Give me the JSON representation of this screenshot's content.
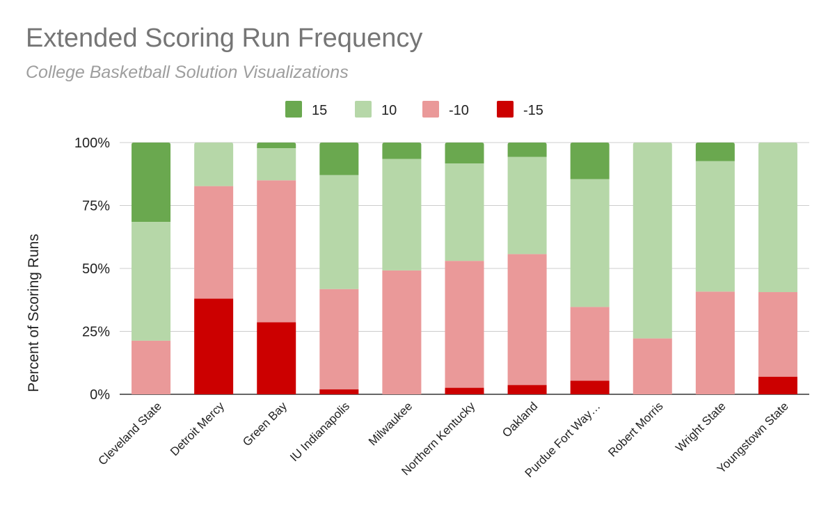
{
  "chart_data": {
    "type": "bar",
    "stacked": true,
    "title": "Extended Scoring Run Frequency",
    "subtitle": "College Basketball Solution Visualizations",
    "xlabel": "",
    "ylabel": "Percent of Scoring Runs",
    "ylim": [
      0,
      100
    ],
    "yticks": [
      "0%",
      "25%",
      "50%",
      "75%",
      "100%"
    ],
    "legend_position": "top-center",
    "categories": [
      "Cleveland State",
      "Detroit Mercy",
      "Green Bay",
      "IU Indianapolis",
      "Milwaukee",
      "Northern Kentucky",
      "Oakland",
      "Purdue Fort Way…",
      "Robert Morris",
      "Wright State",
      "Youngstown State"
    ],
    "series": [
      {
        "name": "-15",
        "color": "#cc0000",
        "values": [
          0,
          38,
          28.6,
          2,
          0,
          2.6,
          3.7,
          5.4,
          0,
          0,
          7
        ]
      },
      {
        "name": "-10",
        "color": "#ea9999",
        "values": [
          21.3,
          44.7,
          56.4,
          39.8,
          49.2,
          50.4,
          52,
          29.3,
          22.2,
          40.8,
          33.6
        ]
      },
      {
        "name": "10",
        "color": "#b6d7a8",
        "values": [
          47.2,
          17.3,
          12.8,
          45.3,
          44.3,
          38.7,
          38.6,
          50.8,
          77.8,
          51.8,
          59.4
        ]
      },
      {
        "name": "15",
        "color": "#6aa84f",
        "values": [
          31.5,
          0,
          2.2,
          12.9,
          6.5,
          8.3,
          5.7,
          14.5,
          0,
          7.4,
          0
        ]
      }
    ],
    "legend_order": [
      "15",
      "10",
      "-10",
      "-15"
    ]
  }
}
